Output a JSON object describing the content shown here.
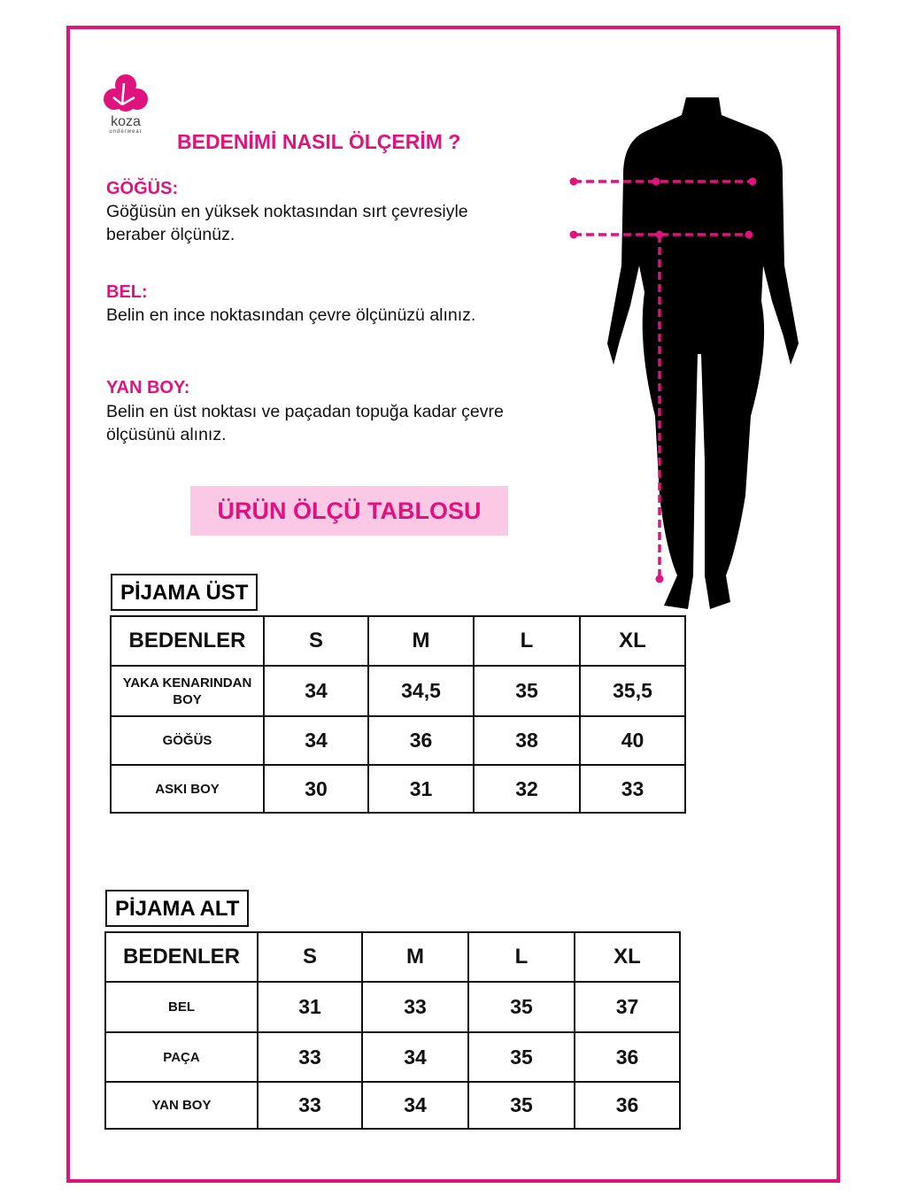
{
  "brand": {
    "name": "koza",
    "tagline": "underwear",
    "color": "#e0127e"
  },
  "title": "BEDENİMİ NASIL ÖLÇERİM ?",
  "sections": [
    {
      "label": "GÖĞÜS:",
      "text": "Göğüsün en yüksek noktasından sırt çevresiyle beraber ölçünüz."
    },
    {
      "label": "BEL:",
      "text": "Belin en ince noktasından çevre ölçünüzü alınız."
    },
    {
      "label": "YAN BOY:",
      "text": "Belin en üst noktası ve paçadan topuğa kadar çevre ölçüsünü alınız."
    }
  ],
  "banner": "ÜRÜN ÖLÇÜ TABLOSU",
  "tables": [
    {
      "title": "PİJAMA ÜST",
      "headers": [
        "BEDENLER",
        "S",
        "M",
        "L",
        "XL"
      ],
      "rows": [
        [
          "YAKA KENARINDAN BOY",
          "34",
          "34,5",
          "35",
          "35,5"
        ],
        [
          "GÖĞÜS",
          "34",
          "36",
          "38",
          "40"
        ],
        [
          "ASKI BOY",
          "30",
          "31",
          "32",
          "33"
        ]
      ]
    },
    {
      "title": "PİJAMA ALT",
      "headers": [
        "BEDENLER",
        "S",
        "M",
        "L",
        "XL"
      ],
      "rows": [
        [
          "BEL",
          "31",
          "33",
          "35",
          "37"
        ],
        [
          "PAÇA",
          "33",
          "34",
          "35",
          "36"
        ],
        [
          "YAN BOY",
          "33",
          "34",
          "35",
          "36"
        ]
      ]
    }
  ]
}
